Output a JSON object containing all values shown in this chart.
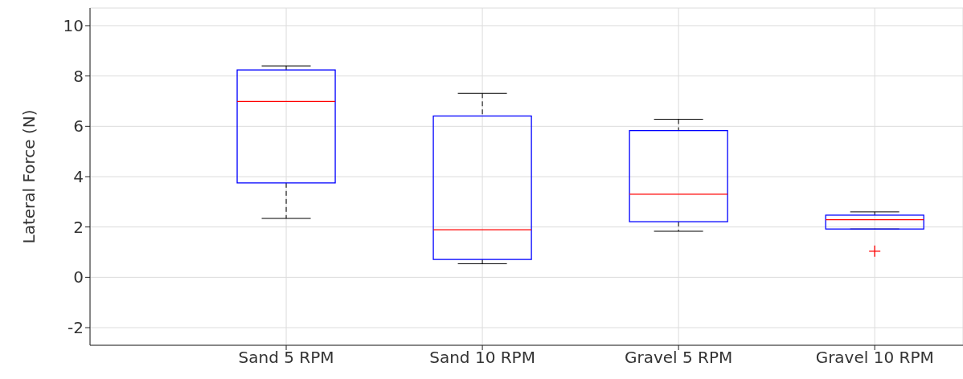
{
  "chart_data": {
    "type": "box",
    "ylabel": "Lateral Force (N)",
    "categories": [
      "Sand 5 RPM",
      "Sand 10 RPM",
      "Gravel 5 RPM",
      "Gravel 10 RPM"
    ],
    "boxes": [
      {
        "low": 2.34,
        "q1": 3.75,
        "median": 6.99,
        "q3": 8.24,
        "high": 8.4
      },
      {
        "low": 0.54,
        "q1": 0.71,
        "median": 1.89,
        "q3": 6.41,
        "high": 7.31
      },
      {
        "low": 1.83,
        "q1": 2.21,
        "median": 3.3,
        "q3": 5.83,
        "high": 6.28
      },
      {
        "low": 1.92,
        "q1": 1.92,
        "median": 2.29,
        "q3": 2.47,
        "high": 2.6,
        "outliers": [
          1.04
        ]
      }
    ],
    "color": "#0000ff",
    "ylim": [
      -2.7,
      10.7
    ],
    "yticks": [
      -2,
      0,
      2,
      4,
      6,
      8,
      10
    ],
    "grid": true
  }
}
